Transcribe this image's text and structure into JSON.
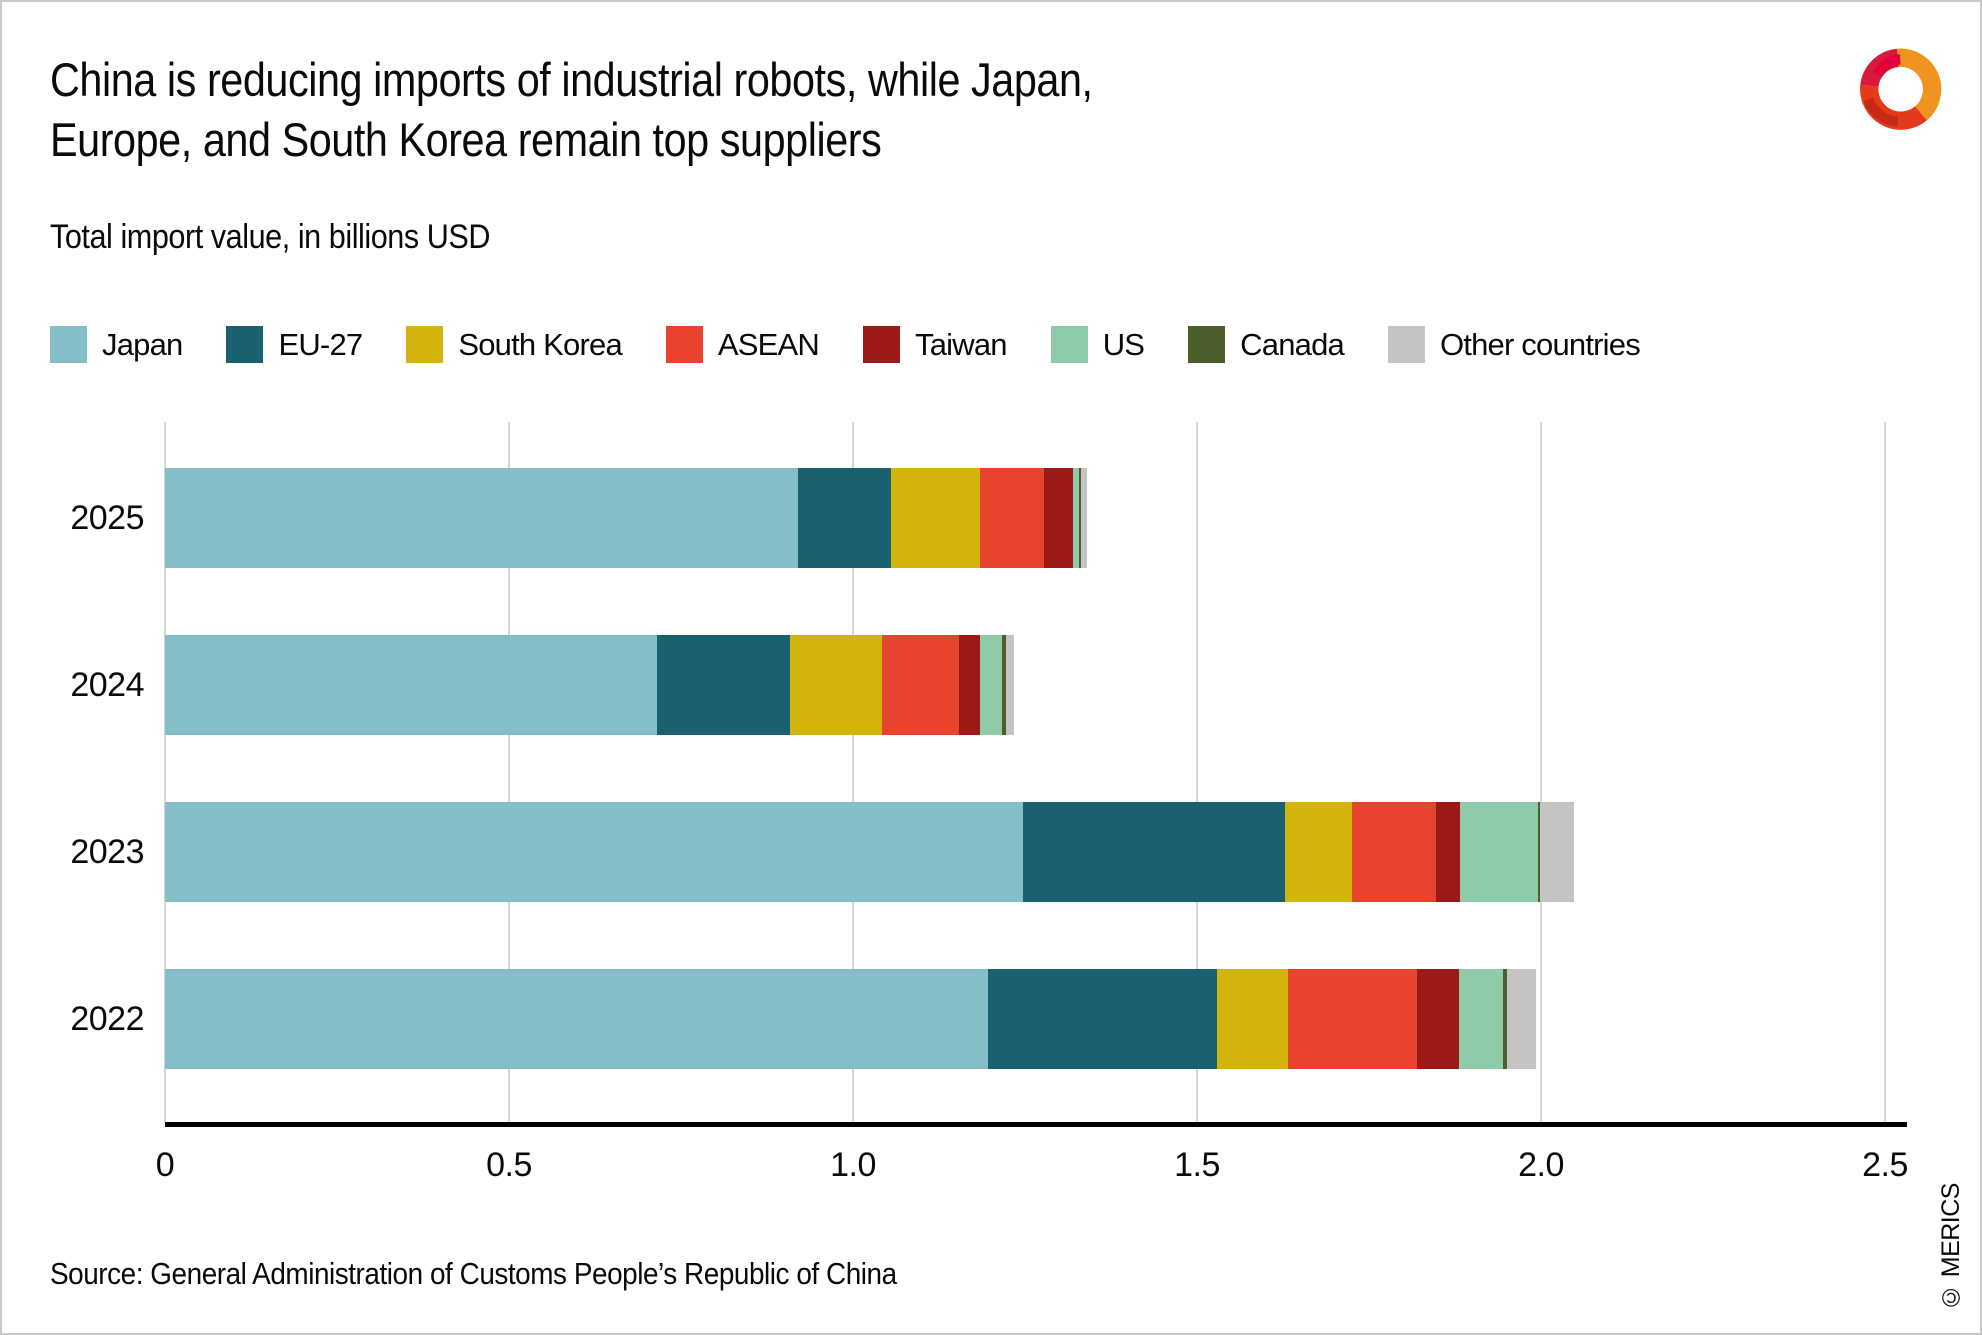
{
  "header": {
    "title_lines": [
      "China is reducing imports of industrial robots, while Japan,",
      "Europe, and South Korea remain top suppliers"
    ],
    "subtitle": "Total import value, in billions USD"
  },
  "logo": {
    "name": "merics-logo",
    "colors": {
      "red": "#E23A1B",
      "crimson": "#D91A3C",
      "orange": "#F0931F",
      "pink": "#E4003A"
    }
  },
  "chart_data": {
    "type": "bar",
    "orientation": "horizontal",
    "unit": "billions USD",
    "categories": [
      "2025",
      "2024",
      "2023",
      "2022"
    ],
    "series": [
      {
        "name": "Japan",
        "color": "#85BEC6",
        "values": [
          0.92,
          0.715,
          1.247,
          1.196
        ]
      },
      {
        "name": "EU-27",
        "color": "#1A6170",
        "values": [
          0.135,
          0.193,
          0.381,
          0.333
        ]
      },
      {
        "name": "South Korea",
        "color": "#D2B40B",
        "values": [
          0.13,
          0.134,
          0.097,
          0.103
        ]
      },
      {
        "name": "ASEAN",
        "color": "#E8432C",
        "values": [
          0.092,
          0.112,
          0.122,
          0.188
        ]
      },
      {
        "name": "Taiwan",
        "color": "#9B1917",
        "values": [
          0.043,
          0.031,
          0.036,
          0.061
        ]
      },
      {
        "name": "US",
        "color": "#8FCBA8",
        "values": [
          0.009,
          0.032,
          0.112,
          0.064
        ]
      },
      {
        "name": "Canada",
        "color": "#4C5E2C",
        "values": [
          0.003,
          0.006,
          0.004,
          0.006
        ]
      },
      {
        "name": "Other countries",
        "color": "#C6C4C2",
        "values": [
          0.008,
          0.011,
          0.049,
          0.042
        ]
      }
    ],
    "totals": [
      1.34,
      1.23,
      2.05,
      1.99
    ],
    "title": "China is reducing imports of industrial robots, while Japan, Europe, and South Korea remain top suppliers",
    "xlabel": "",
    "ylabel": "",
    "x_ticks": [
      "0",
      "0.5",
      "1.0",
      "1.5",
      "2.0",
      "2.5"
    ],
    "x_tick_values": [
      0,
      0.5,
      1.0,
      1.5,
      2.0,
      2.5
    ],
    "x_max": 2.532,
    "grid": true,
    "legend_position": "top",
    "gridline_color": "#D6D6D6",
    "axis_color": "#000000"
  },
  "footer": {
    "source": "Source: General Administration of Customs People’s Republic of China",
    "copyright": "© MERICS"
  }
}
